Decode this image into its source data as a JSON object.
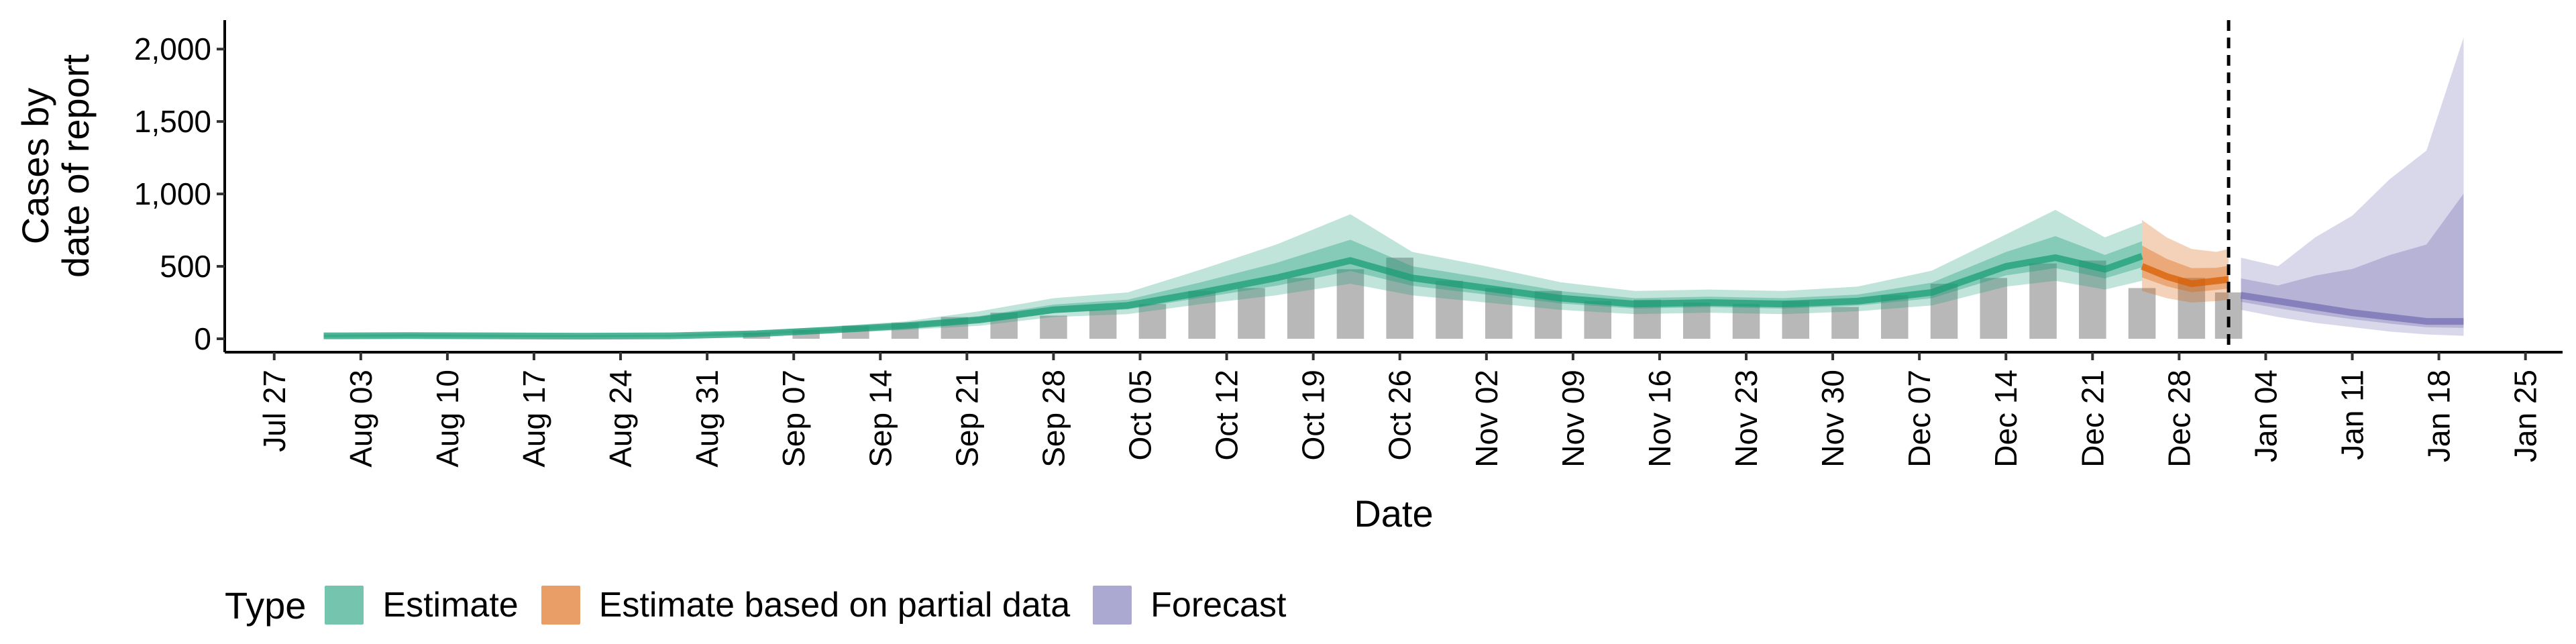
{
  "chart_data": {
    "type": "area",
    "ylabel": "Cases by\ndate of report",
    "xlabel": "Date",
    "ylim": [
      0,
      2200
    ],
    "yticks": [
      0,
      500,
      1000,
      1500,
      2000
    ],
    "ytick_labels": [
      "0",
      "500",
      "1,000",
      "1,500",
      "2,000"
    ],
    "xlim": [
      "2020-07-23",
      "2021-01-28"
    ],
    "xticks": [
      "2020-07-27",
      "2020-08-03",
      "2020-08-10",
      "2020-08-17",
      "2020-08-24",
      "2020-08-31",
      "2020-09-07",
      "2020-09-14",
      "2020-09-21",
      "2020-09-28",
      "2020-10-05",
      "2020-10-12",
      "2020-10-19",
      "2020-10-26",
      "2020-11-02",
      "2020-11-09",
      "2020-11-16",
      "2020-11-23",
      "2020-11-30",
      "2020-12-07",
      "2020-12-14",
      "2020-12-21",
      "2020-12-28",
      "2021-01-04",
      "2021-01-11",
      "2021-01-18",
      "2021-01-25"
    ],
    "xtick_labels": [
      "Jul 27",
      "Aug 03",
      "Aug 10",
      "Aug 17",
      "Aug 24",
      "Aug 31",
      "Sep 07",
      "Sep 14",
      "Sep 21",
      "Sep 28",
      "Oct 05",
      "Oct 12",
      "Oct 19",
      "Oct 26",
      "Nov 02",
      "Nov 09",
      "Nov 16",
      "Nov 23",
      "Nov 30",
      "Dec 07",
      "Dec 14",
      "Dec 21",
      "Dec 28",
      "Jan 04",
      "Jan 11",
      "Jan 18",
      "Jan 25"
    ],
    "forecast_start": "2021-01-01",
    "reported_cases": {
      "x": [
        "2020-09-04",
        "2020-09-08",
        "2020-09-12",
        "2020-09-16",
        "2020-09-20",
        "2020-09-24",
        "2020-09-28",
        "2020-10-02",
        "2020-10-06",
        "2020-10-10",
        "2020-10-14",
        "2020-10-18",
        "2020-10-22",
        "2020-10-26",
        "2020-10-30",
        "2020-11-03",
        "2020-11-07",
        "2020-11-11",
        "2020-11-15",
        "2020-11-19",
        "2020-11-23",
        "2020-11-27",
        "2020-12-01",
        "2020-12-05",
        "2020-12-09",
        "2020-12-13",
        "2020-12-17",
        "2020-12-21",
        "2020-12-25",
        "2020-12-29",
        "2021-01-01"
      ],
      "values": [
        40,
        60,
        90,
        110,
        150,
        180,
        160,
        200,
        240,
        330,
        350,
        420,
        480,
        560,
        400,
        350,
        330,
        260,
        270,
        250,
        240,
        260,
        220,
        300,
        380,
        420,
        520,
        540,
        350,
        420,
        320
      ]
    },
    "series": [
      {
        "name": "Estimate",
        "color": "#1b9e77",
        "x": [
          "2020-07-31",
          "2020-08-07",
          "2020-08-14",
          "2020-08-21",
          "2020-08-28",
          "2020-09-04",
          "2020-09-10",
          "2020-09-16",
          "2020-09-22",
          "2020-09-28",
          "2020-10-04",
          "2020-10-10",
          "2020-10-16",
          "2020-10-22",
          "2020-10-27",
          "2020-11-02",
          "2020-11-08",
          "2020-11-14",
          "2020-11-20",
          "2020-11-26",
          "2020-12-02",
          "2020-12-08",
          "2020-12-14",
          "2020-12-18",
          "2020-12-22",
          "2020-12-25"
        ],
        "median": [
          20,
          22,
          20,
          18,
          20,
          35,
          60,
          90,
          130,
          200,
          230,
          320,
          420,
          540,
          420,
          350,
          280,
          240,
          250,
          240,
          260,
          320,
          500,
          560,
          480,
          570
        ],
        "lower_90": [
          10,
          12,
          10,
          10,
          12,
          20,
          40,
          60,
          90,
          150,
          170,
          240,
          300,
          380,
          300,
          250,
          200,
          170,
          180,
          170,
          190,
          230,
          360,
          400,
          340,
          400
        ],
        "upper_90": [
          30,
          35,
          30,
          28,
          30,
          55,
          85,
          120,
          190,
          280,
          320,
          480,
          650,
          860,
          600,
          500,
          390,
          330,
          340,
          330,
          360,
          470,
          720,
          890,
          700,
          800
        ]
      },
      {
        "name": "Estimate based on partial data",
        "color": "#d95f02",
        "x": [
          "2020-12-25",
          "2020-12-27",
          "2020-12-29",
          "2020-12-31",
          "2021-01-01"
        ],
        "median": [
          500,
          430,
          380,
          400,
          410
        ],
        "lower_90": [
          330,
          280,
          250,
          260,
          270
        ],
        "upper_90": [
          820,
          700,
          620,
          600,
          620
        ]
      },
      {
        "name": "Forecast",
        "color": "#7570b3",
        "x": [
          "2021-01-02",
          "2021-01-05",
          "2021-01-08",
          "2021-01-11",
          "2021-01-14",
          "2021-01-17",
          "2021-01-20"
        ],
        "median": [
          300,
          260,
          220,
          180,
          150,
          120,
          120
        ],
        "lower_90": [
          200,
          150,
          110,
          80,
          50,
          30,
          20
        ],
        "upper_90": [
          560,
          500,
          700,
          850,
          1100,
          1300,
          2080
        ]
      }
    ],
    "legend": {
      "position": "bottom-left",
      "title": "Type",
      "items": [
        "Estimate",
        "Estimate based on partial data",
        "Forecast"
      ]
    }
  }
}
